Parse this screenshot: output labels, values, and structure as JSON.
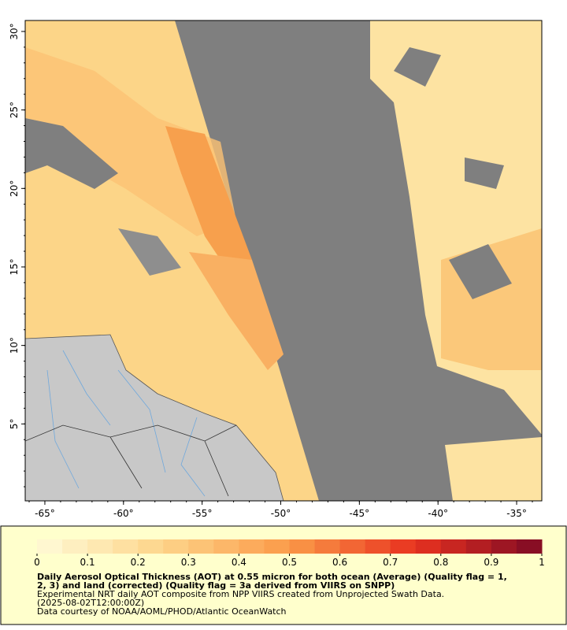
{
  "map": {
    "lon_lim": [
      -66.25,
      -33.4
    ],
    "lat_lim": [
      0.1,
      30.7
    ],
    "lon_ticks": [
      {
        "value": -65,
        "label": "-65°"
      },
      {
        "value": -60,
        "label": "-60°"
      },
      {
        "value": -55,
        "label": "-55°"
      },
      {
        "value": -50,
        "label": "-50°"
      },
      {
        "value": -45,
        "label": "-45°"
      },
      {
        "value": -40,
        "label": "-40°"
      },
      {
        "value": -35,
        "label": "-35°"
      }
    ],
    "lat_ticks": [
      {
        "value": 30,
        "label": "30°"
      },
      {
        "value": 25,
        "label": "25°"
      },
      {
        "value": 20,
        "label": "20°"
      },
      {
        "value": 15,
        "label": "15°"
      },
      {
        "value": 10,
        "label": "10°"
      },
      {
        "value": 5,
        "label": "5°"
      }
    ]
  },
  "colorbar": {
    "range": [
      0,
      1
    ],
    "ticks": [
      0,
      0.1,
      0.2,
      0.3,
      0.4,
      0.5,
      0.6,
      0.7,
      0.8,
      0.9,
      1
    ],
    "color_stops": [
      "#fffbd8",
      "#fdd489",
      "#fb9a48",
      "#e8321f",
      "#7d0a25"
    ]
  },
  "caption": {
    "title": [
      "Daily Aerosol Optical Thickness (AOT) at 0.55 micron for both ocean (Average) (Quality flag = 1,",
      "2, 3) and land (corrected) (Quality flag = 3a derived from VIIRS on SNPP)"
    ],
    "lines": [
      "Experimental NRT daily AOT composite from NPP VIIRS created from Unprojected Swath Data.",
      "(2025-08-02T12:00:00Z)",
      "Data courtesy of NOAA/AOML/PHOD/Atlantic OceanWatch"
    ]
  }
}
